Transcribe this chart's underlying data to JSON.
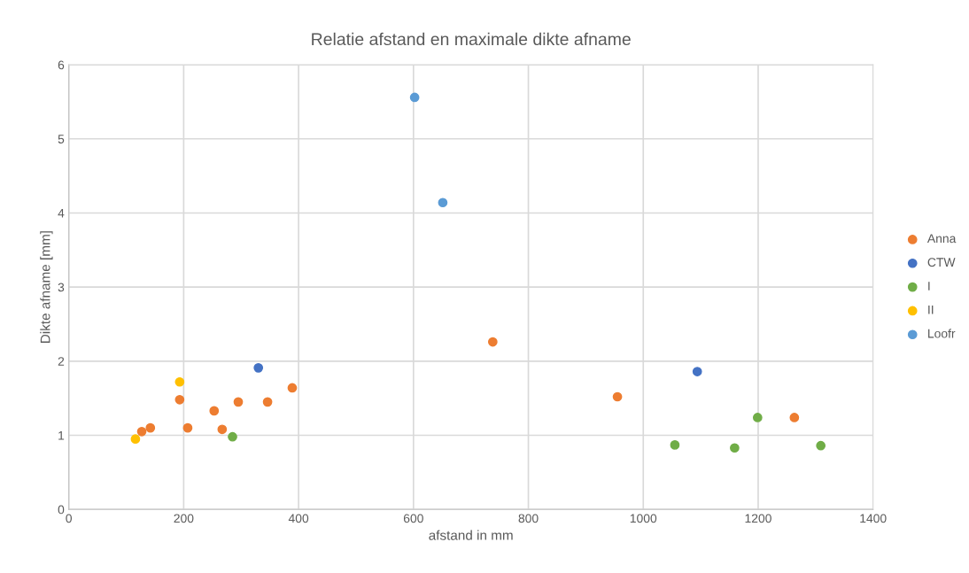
{
  "chart_data": {
    "type": "scatter",
    "title": "Relatie afstand en maximale dikte afname",
    "xlabel": "afstand in mm",
    "ylabel": "Dikte afname [mm]",
    "xlim": [
      0,
      1400
    ],
    "xticks": [
      0,
      200,
      400,
      600,
      800,
      1000,
      1200,
      1400
    ],
    "ylim": [
      0,
      6
    ],
    "yticks": [
      0,
      1,
      2,
      3,
      4,
      5,
      6
    ],
    "grid": true,
    "legend": "right",
    "marker": "circle",
    "series": [
      {
        "name": "Anna",
        "color": "#ed7d31",
        "x": [
          127,
          142,
          193,
          207,
          253,
          267,
          295,
          346,
          389,
          738,
          955,
          1263
        ],
        "values": [
          1.05,
          1.1,
          1.48,
          1.1,
          1.33,
          1.08,
          1.45,
          1.45,
          1.64,
          2.26,
          1.52,
          1.24
        ]
      },
      {
        "name": "CTW",
        "color": "#4472c4",
        "x": [
          330,
          1094
        ],
        "values": [
          1.91,
          1.86
        ]
      },
      {
        "name": "I",
        "color": "#70ad47",
        "x": [
          285,
          1055,
          1159,
          1199,
          1309
        ],
        "values": [
          0.98,
          0.87,
          0.83,
          1.24,
          0.86
        ]
      },
      {
        "name": "II",
        "color": "#ffc000",
        "x": [
          116,
          193
        ],
        "values": [
          0.95,
          1.72
        ]
      },
      {
        "name": "Loofr",
        "color": "#5b9bd5",
        "x": [
          602,
          651
        ],
        "values": [
          5.56,
          4.14
        ]
      }
    ]
  }
}
